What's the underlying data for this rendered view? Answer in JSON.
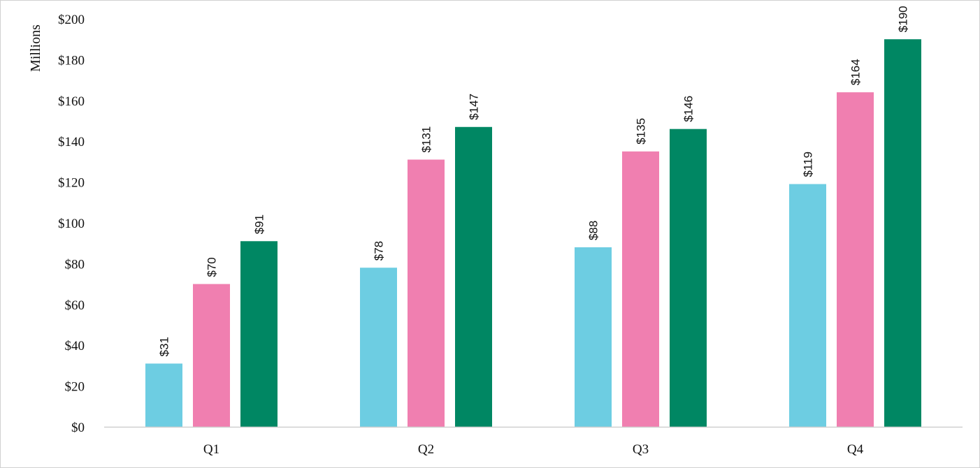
{
  "chart_data": {
    "type": "bar",
    "title": "",
    "xlabel": "",
    "ylabel": "Millions",
    "ylim": [
      0,
      200
    ],
    "y_tick_step": 20,
    "y_tick_prefix": "$",
    "value_prefix": "$",
    "grid": false,
    "legend": "none",
    "categories": [
      "Q1",
      "Q2",
      "Q3",
      "Q4"
    ],
    "series": [
      {
        "color": "#6dcde2",
        "values": [
          31,
          78,
          88,
          119
        ]
      },
      {
        "color": "#f07fb0",
        "values": [
          70,
          131,
          135,
          164
        ]
      },
      {
        "color": "#008763",
        "values": [
          91,
          147,
          146,
          190
        ]
      }
    ]
  }
}
